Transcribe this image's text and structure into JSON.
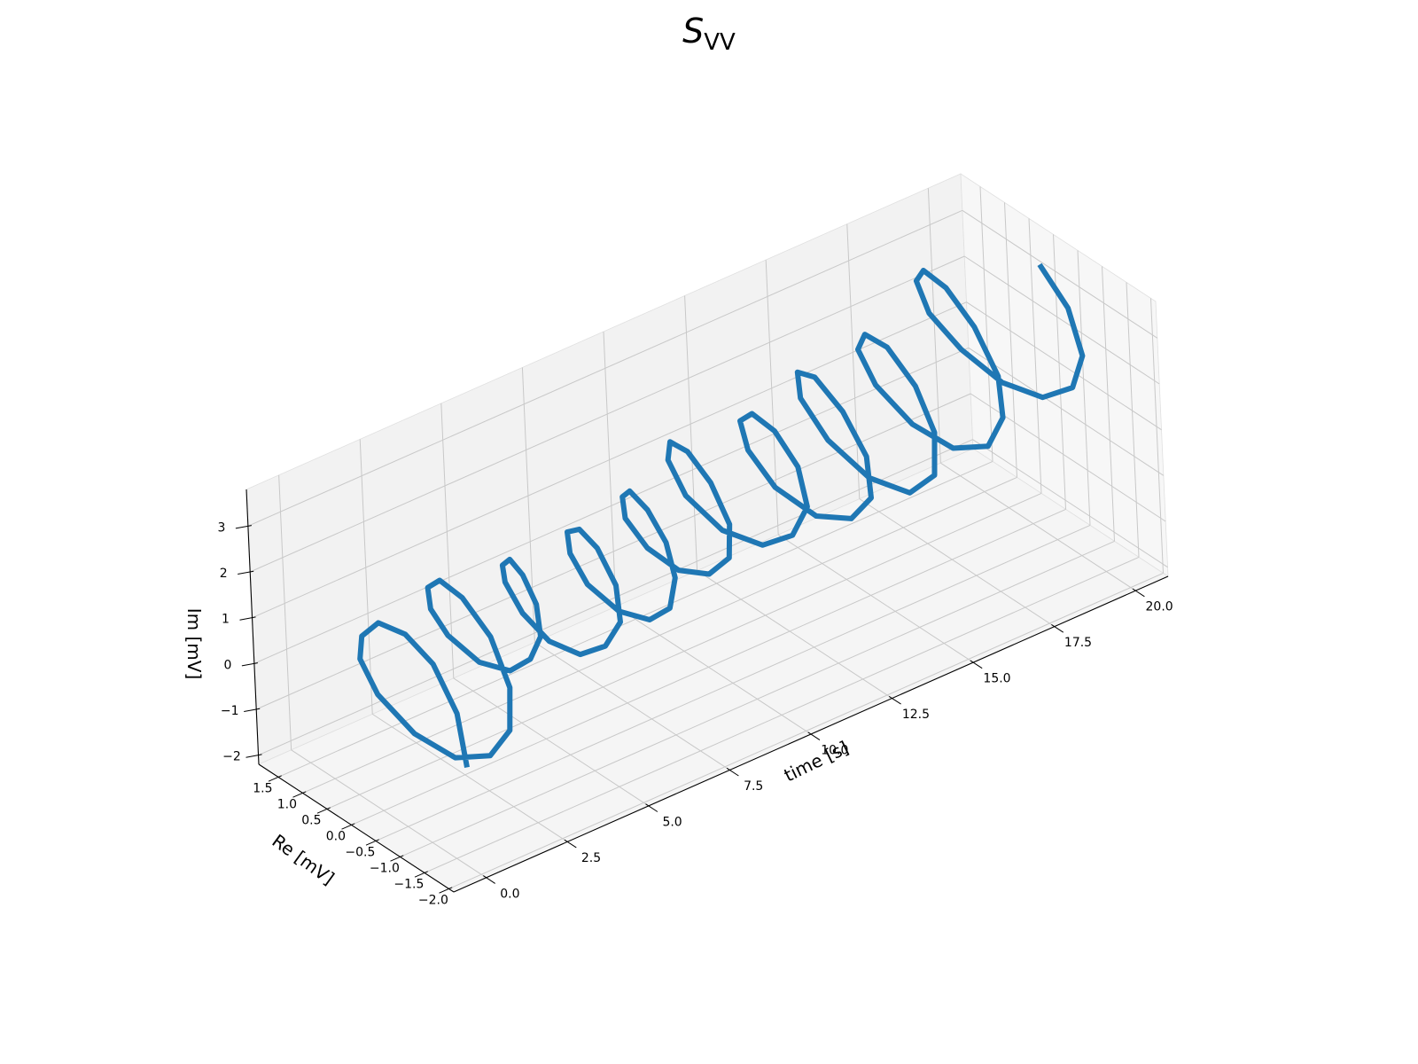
{
  "chart_data": {
    "type": "line",
    "projection": "3d",
    "title": {
      "main": "S",
      "subscript": "VV"
    },
    "xlabel": "time [s]",
    "ylabel": "Re [mV]",
    "zlabel": "Im [mV]",
    "xlim": [
      -1,
      21
    ],
    "ylim": [
      -2.1,
      1.9
    ],
    "zlim": [
      -2.2,
      3.8
    ],
    "xticks": [
      0,
      2.5,
      5,
      7.5,
      10,
      12.5,
      15,
      17.5,
      20
    ],
    "xtick_labels": [
      "0.0",
      "2.5",
      "5.0",
      "7.5",
      "10.0",
      "12.5",
      "15.0",
      "17.5",
      "20.0"
    ],
    "yticks": [
      -2,
      -1.5,
      -1,
      -0.5,
      0,
      0.5,
      1,
      1.5
    ],
    "ytick_labels": [
      "−2.0",
      "−1.5",
      "−1.0",
      "−0.5",
      "0.0",
      "0.5",
      "1.0",
      "1.5"
    ],
    "zticks": [
      -2,
      -1,
      0,
      1,
      2,
      3
    ],
    "ztick_labels": [
      "−2",
      "−1",
      "0",
      "1",
      "2",
      "3"
    ],
    "grid": true,
    "series": [
      {
        "color": "#1f77b4",
        "points": [
          [
            0,
            -1.8,
            0.0
          ],
          [
            0.2,
            -1.5,
            0.9
          ],
          [
            0.4,
            -0.9,
            1.5
          ],
          [
            0.6,
            -0.2,
            1.6
          ],
          [
            0.8,
            0.5,
            1.3
          ],
          [
            1.0,
            1.0,
            0.6
          ],
          [
            1.2,
            1.2,
            -0.1
          ],
          [
            1.4,
            1.0,
            -0.8
          ],
          [
            1.6,
            0.4,
            -1.3
          ],
          [
            1.8,
            -0.3,
            -1.4
          ],
          [
            2.0,
            -0.9,
            -1.0
          ],
          [
            2.2,
            -1.2,
            -0.3
          ],
          [
            2.4,
            -1.1,
            0.5
          ],
          [
            2.6,
            -0.6,
            1.2
          ],
          [
            2.8,
            0.1,
            1.5
          ],
          [
            3.0,
            0.7,
            1.4
          ],
          [
            3.2,
            1.1,
            0.9
          ],
          [
            3.4,
            1.2,
            0.3
          ],
          [
            3.6,
            1.0,
            -0.2
          ],
          [
            3.8,
            0.5,
            -0.5
          ],
          [
            4.0,
            0.0,
            -0.4
          ],
          [
            4.2,
            -0.3,
            0.0
          ],
          [
            4.4,
            -0.4,
            0.5
          ],
          [
            4.6,
            -0.2,
            1.0
          ],
          [
            4.8,
            0.2,
            1.3
          ],
          [
            5.0,
            0.6,
            1.3
          ],
          [
            5.2,
            0.9,
            0.9
          ],
          [
            5.4,
            1.0,
            0.4
          ],
          [
            5.6,
            0.8,
            -0.2
          ],
          [
            5.8,
            0.4,
            -0.6
          ],
          [
            6.0,
            -0.1,
            -0.6
          ],
          [
            6.2,
            -0.5,
            -0.2
          ],
          [
            6.4,
            -0.7,
            0.4
          ],
          [
            6.6,
            -0.5,
            1.0
          ],
          [
            6.8,
            0.0,
            1.4
          ],
          [
            7.0,
            0.5,
            1.4
          ],
          [
            7.2,
            0.9,
            1.0
          ],
          [
            7.4,
            1.0,
            0.4
          ],
          [
            7.6,
            0.8,
            -0.2
          ],
          [
            7.8,
            0.3,
            -0.5
          ],
          [
            8.0,
            -0.2,
            -0.4
          ],
          [
            8.2,
            -0.5,
            0.0
          ],
          [
            8.4,
            -0.5,
            0.6
          ],
          [
            8.6,
            -0.2,
            1.1
          ],
          [
            8.8,
            0.3,
            1.4
          ],
          [
            9.0,
            0.8,
            1.4
          ],
          [
            9.2,
            1.1,
            1.0
          ],
          [
            9.4,
            1.2,
            0.4
          ],
          [
            9.6,
            0.9,
            -0.1
          ],
          [
            9.8,
            0.4,
            -0.3
          ],
          [
            10.0,
            -0.1,
            -0.1
          ],
          [
            10.2,
            -0.4,
            0.4
          ],
          [
            10.4,
            -0.3,
            1.0
          ],
          [
            10.6,
            0.2,
            1.5
          ],
          [
            10.8,
            0.8,
            1.7
          ],
          [
            11.0,
            1.3,
            1.5
          ],
          [
            11.2,
            1.5,
            0.9
          ],
          [
            11.4,
            1.3,
            0.2
          ],
          [
            11.6,
            0.7,
            -0.2
          ],
          [
            11.8,
            0.0,
            -0.1
          ],
          [
            12.0,
            -0.5,
            0.4
          ],
          [
            12.2,
            -0.7,
            1.1
          ],
          [
            12.4,
            -0.4,
            1.7
          ],
          [
            12.6,
            0.2,
            2.0
          ],
          [
            12.8,
            0.8,
            1.9
          ],
          [
            13.0,
            1.2,
            1.4
          ],
          [
            13.2,
            1.2,
            0.7
          ],
          [
            13.4,
            0.8,
            0.1
          ],
          [
            13.6,
            0.1,
            -0.1
          ],
          [
            13.8,
            -0.5,
            0.2
          ],
          [
            14.0,
            -0.8,
            0.8
          ],
          [
            14.2,
            -0.6,
            1.5
          ],
          [
            14.4,
            0.0,
            2.0
          ],
          [
            14.6,
            0.7,
            2.2
          ],
          [
            14.8,
            1.2,
            1.9
          ],
          [
            15.0,
            1.3,
            1.2
          ],
          [
            15.2,
            0.9,
            0.5
          ],
          [
            15.4,
            0.2,
            0.1
          ],
          [
            15.6,
            -0.5,
            0.2
          ],
          [
            15.8,
            -0.9,
            0.8
          ],
          [
            16.0,
            -0.8,
            1.6
          ],
          [
            16.2,
            -0.3,
            2.2
          ],
          [
            16.4,
            0.4,
            2.5
          ],
          [
            16.6,
            1.0,
            2.3
          ],
          [
            16.8,
            1.3,
            1.7
          ],
          [
            17.0,
            1.1,
            1.0
          ],
          [
            17.2,
            0.5,
            0.5
          ],
          [
            17.4,
            -0.2,
            0.4
          ],
          [
            17.6,
            -0.8,
            0.8
          ],
          [
            17.8,
            -1.0,
            1.5
          ],
          [
            18.0,
            -0.8,
            2.2
          ],
          [
            18.2,
            -0.2,
            2.8
          ],
          [
            18.4,
            0.5,
            3.1
          ],
          [
            18.6,
            1.1,
            3.0
          ],
          [
            18.8,
            1.4,
            2.5
          ],
          [
            19.0,
            1.3,
            1.8
          ],
          [
            19.2,
            0.8,
            1.3
          ],
          [
            19.4,
            0.1,
            1.0
          ],
          [
            19.6,
            -0.6,
            1.1
          ],
          [
            19.8,
            -1.1,
            1.6
          ],
          [
            20.0,
            -1.2,
            2.3
          ],
          [
            20.2,
            -0.8,
            3.0
          ],
          [
            20.4,
            -0.1,
            3.4
          ]
        ]
      }
    ]
  }
}
